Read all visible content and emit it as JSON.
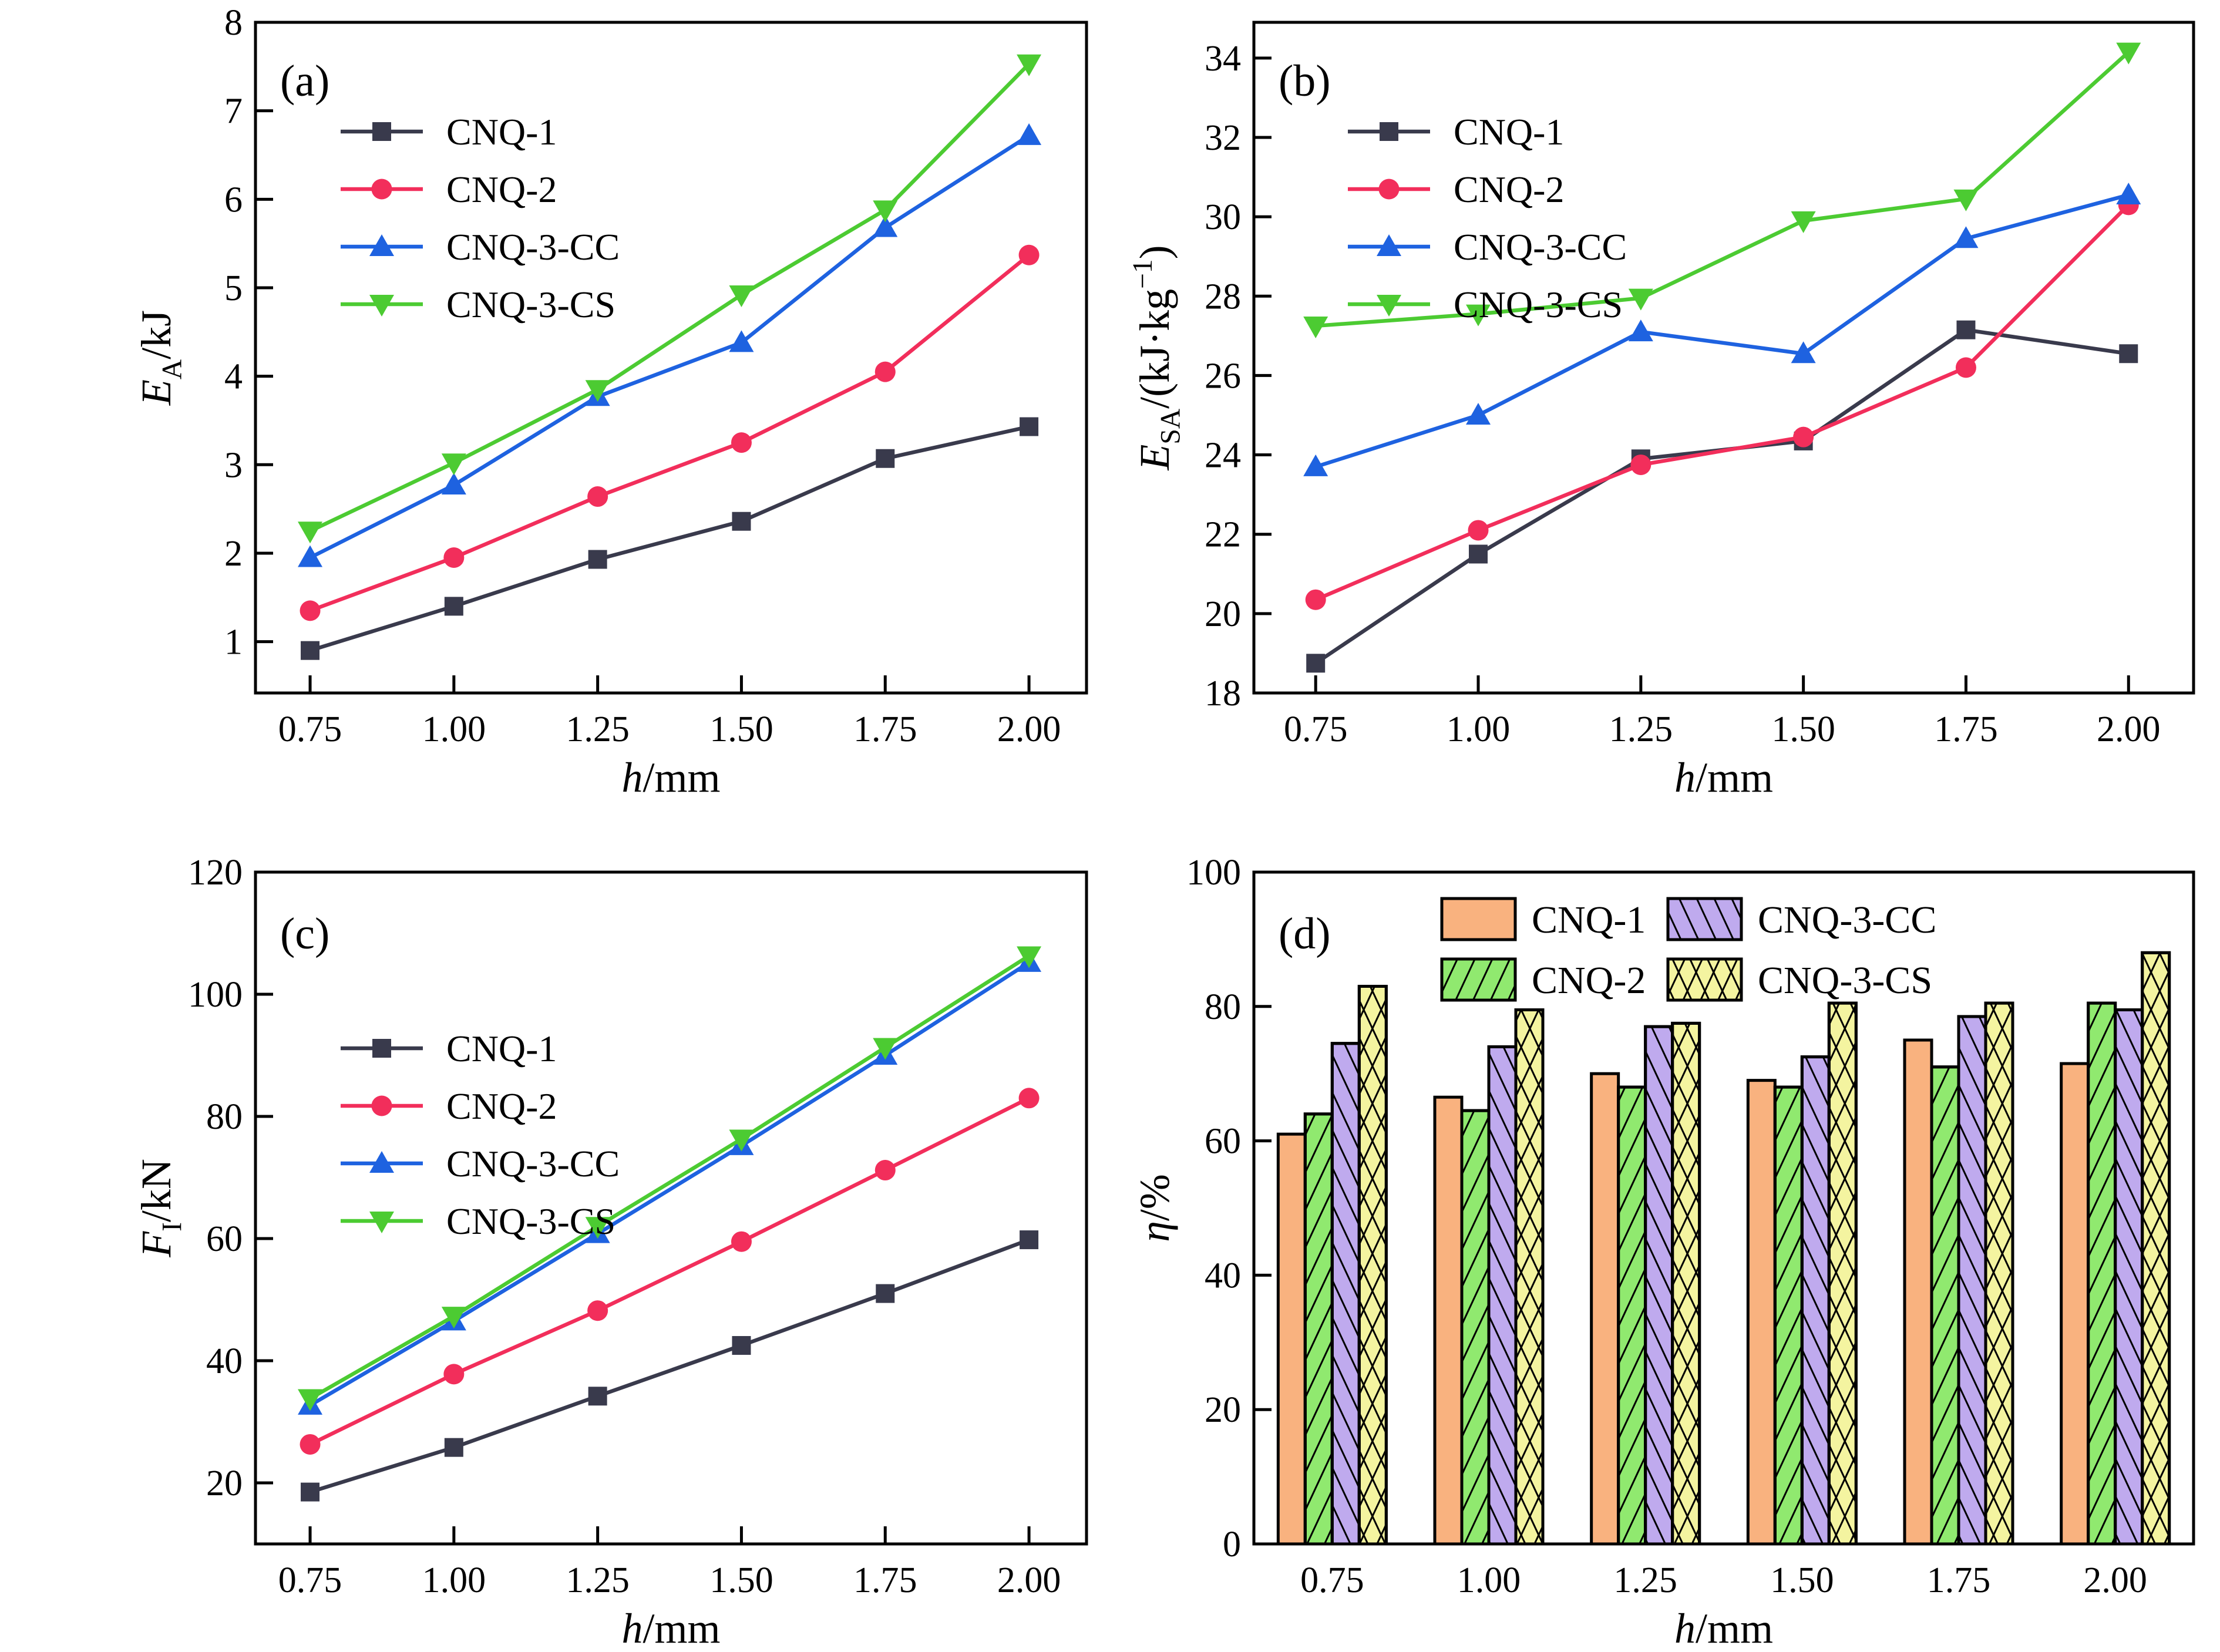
{
  "figure": {
    "background": "#ffffff",
    "panels": [
      "(a)",
      "(b)",
      "(c)",
      "(d)"
    ],
    "series_names": [
      "CNQ-1",
      "CNQ-2",
      "CNQ-3-CC",
      "CNQ-3-CS"
    ],
    "line_colors": {
      "CNQ-1": "#393a4c",
      "CNQ-2": "#f22e5b",
      "CNQ-3-CC": "#1e62e0",
      "CNQ-3-CS": "#4ccb32"
    },
    "bar_colors": {
      "CNQ-1": "#f9b27f",
      "CNQ-2": "#90e96f",
      "CNQ-3-CC": "#bfaaee",
      "CNQ-3-CS": "#f4f4a0"
    },
    "axis_color": "#000000"
  },
  "chart_data": [
    {
      "type": "line",
      "panel_label": "(a)",
      "x": [
        0.75,
        1.0,
        1.25,
        1.5,
        1.75,
        2.0
      ],
      "x_tick_labels": [
        "0.75",
        "1.00",
        "1.25",
        "1.50",
        "1.75",
        "2.00"
      ],
      "xlim": [
        0.655,
        2.1
      ],
      "ylim": [
        0.42,
        8
      ],
      "yticks": [
        1,
        2,
        3,
        4,
        5,
        6,
        7,
        8
      ],
      "ytick_labels": [
        "1",
        "2",
        "3",
        "4",
        "5",
        "6",
        "7",
        "8"
      ],
      "xlabel_tokens": [
        {
          "t": "h",
          "italic": true
        },
        {
          "t": "/mm"
        }
      ],
      "ylabel_tokens": [
        {
          "t": "E",
          "italic": true
        },
        {
          "t": "A",
          "sub": true
        },
        {
          "t": "/kJ"
        }
      ],
      "legend_position": "top-left",
      "series": [
        {
          "name": "CNQ-1",
          "color": "#393a4c",
          "marker": "square",
          "values": [
            0.9,
            1.4,
            1.93,
            2.36,
            3.07,
            3.43
          ]
        },
        {
          "name": "CNQ-2",
          "color": "#f22e5b",
          "marker": "circle",
          "values": [
            1.35,
            1.95,
            2.64,
            3.25,
            4.05,
            5.37
          ]
        },
        {
          "name": "CNQ-3-CC",
          "color": "#1e62e0",
          "marker": "triangle-up",
          "values": [
            1.95,
            2.77,
            3.77,
            4.38,
            5.68,
            6.72
          ]
        },
        {
          "name": "CNQ-3-CS",
          "color": "#4ccb32",
          "marker": "triangle-down",
          "values": [
            2.25,
            3.02,
            3.85,
            4.92,
            5.88,
            7.53
          ]
        }
      ]
    },
    {
      "type": "line",
      "panel_label": "(b)",
      "x": [
        0.75,
        1.0,
        1.25,
        1.5,
        1.75,
        2.0
      ],
      "x_tick_labels": [
        "0.75",
        "1.00",
        "1.25",
        "1.50",
        "1.75",
        "2.00"
      ],
      "xlim": [
        0.655,
        2.1
      ],
      "ylim": [
        18,
        34.9
      ],
      "yticks": [
        18,
        20,
        22,
        24,
        26,
        28,
        30,
        32,
        34
      ],
      "ytick_labels": [
        "18",
        "20",
        "22",
        "24",
        "26",
        "28",
        "30",
        "32",
        "34"
      ],
      "xlabel_tokens": [
        {
          "t": "h",
          "italic": true
        },
        {
          "t": "/mm"
        }
      ],
      "ylabel_tokens": [
        {
          "t": "E",
          "italic": true
        },
        {
          "t": "SA",
          "sub": true
        },
        {
          "t": "/(kJ·kg"
        },
        {
          "t": "−1",
          "sup": true
        },
        {
          "t": ")"
        }
      ],
      "legend_position": "top-left",
      "series": [
        {
          "name": "CNQ-1",
          "color": "#393a4c",
          "marker": "square",
          "values": [
            18.75,
            21.5,
            23.9,
            24.35,
            27.15,
            26.55
          ]
        },
        {
          "name": "CNQ-2",
          "color": "#f22e5b",
          "marker": "circle",
          "values": [
            20.35,
            22.1,
            23.75,
            24.45,
            26.2,
            30.3
          ]
        },
        {
          "name": "CNQ-3-CC",
          "color": "#1e62e0",
          "marker": "triangle-up",
          "values": [
            23.7,
            25.0,
            27.1,
            26.55,
            29.45,
            30.55
          ]
        },
        {
          "name": "CNQ-3-CS",
          "color": "#4ccb32",
          "marker": "triangle-down",
          "values": [
            27.25,
            27.55,
            27.95,
            29.9,
            30.45,
            34.15
          ]
        }
      ]
    },
    {
      "type": "line",
      "panel_label": "(c)",
      "x": [
        0.75,
        1.0,
        1.25,
        1.5,
        1.75,
        2.0
      ],
      "x_tick_labels": [
        "0.75",
        "1.00",
        "1.25",
        "1.50",
        "1.75",
        "2.00"
      ],
      "xlim": [
        0.655,
        2.1
      ],
      "ylim": [
        10,
        120
      ],
      "yticks": [
        20,
        40,
        60,
        80,
        100,
        120
      ],
      "ytick_labels": [
        "20",
        "40",
        "60",
        "80",
        "100",
        "120"
      ],
      "xlabel_tokens": [
        {
          "t": "h",
          "italic": true
        },
        {
          "t": "/mm"
        }
      ],
      "ylabel_tokens": [
        {
          "t": "F",
          "italic": true
        },
        {
          "t": "I",
          "sub": true
        },
        {
          "t": "/kN"
        }
      ],
      "legend_position": "top-left",
      "series": [
        {
          "name": "CNQ-1",
          "color": "#393a4c",
          "marker": "square",
          "values": [
            18.5,
            25.8,
            34.2,
            42.5,
            51.0,
            59.8
          ]
        },
        {
          "name": "CNQ-2",
          "color": "#f22e5b",
          "marker": "circle",
          "values": [
            26.3,
            37.8,
            48.2,
            59.5,
            71.2,
            83.0
          ]
        },
        {
          "name": "CNQ-3-CC",
          "color": "#1e62e0",
          "marker": "triangle-up",
          "values": [
            32.7,
            46.5,
            60.8,
            75.2,
            90.0,
            105.2
          ]
        },
        {
          "name": "CNQ-3-CS",
          "color": "#4ccb32",
          "marker": "triangle-down",
          "values": [
            33.8,
            47.3,
            62.0,
            76.3,
            91.3,
            106.3
          ]
        }
      ]
    },
    {
      "type": "bar",
      "panel_label": "(d)",
      "categories": [
        "0.75",
        "1.00",
        "1.25",
        "1.50",
        "1.75",
        "2.00"
      ],
      "ylim": [
        0,
        100
      ],
      "yticks": [
        0,
        20,
        40,
        60,
        80,
        100
      ],
      "ytick_labels": [
        "0",
        "20",
        "40",
        "60",
        "80",
        "100"
      ],
      "xlabel_tokens": [
        {
          "t": "h",
          "italic": true
        },
        {
          "t": "/mm"
        }
      ],
      "ylabel_tokens": [
        {
          "t": "η",
          "italic": true
        },
        {
          "t": "/%"
        }
      ],
      "legend_grid": [
        [
          "CNQ-1",
          "CNQ-3-CC"
        ],
        [
          "CNQ-2",
          "CNQ-3-CS"
        ]
      ],
      "series": [
        {
          "name": "CNQ-1",
          "fill": "#f9b27f",
          "hatch": "none",
          "values": [
            61,
            66.5,
            70,
            69,
            75,
            71.5
          ]
        },
        {
          "name": "CNQ-2",
          "fill": "#90e96f",
          "hatch": "/",
          "values": [
            64,
            64.5,
            68,
            68,
            71,
            80.5
          ]
        },
        {
          "name": "CNQ-3-CC",
          "fill": "#bfaaee",
          "hatch": "\\",
          "values": [
            74.5,
            74,
            77,
            72.5,
            78.5,
            79.5
          ]
        },
        {
          "name": "CNQ-3-CS",
          "fill": "#f4f4a0",
          "hatch": "x",
          "values": [
            83,
            79.5,
            77.5,
            80.5,
            80.5,
            88
          ]
        }
      ]
    }
  ]
}
